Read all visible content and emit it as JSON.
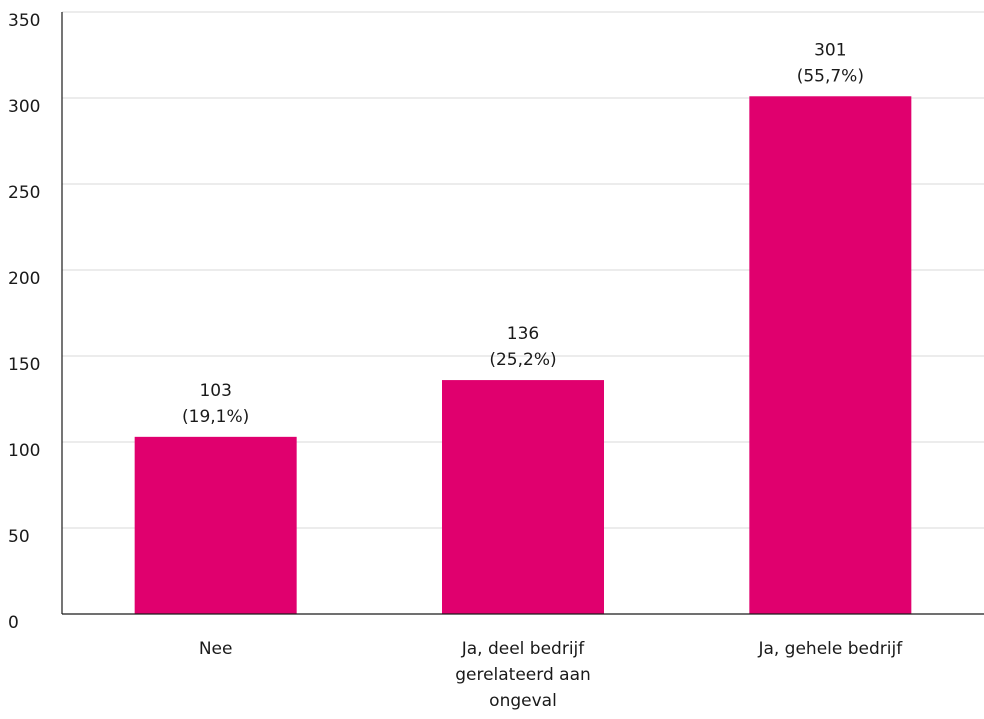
{
  "chart_data": {
    "type": "bar",
    "categories": [
      [
        "Nee"
      ],
      [
        "Ja, deel bedrijf",
        "gerelateerd aan",
        "ongeval"
      ],
      [
        "Ja, gehele bedrijf"
      ]
    ],
    "values": [
      103,
      136,
      301
    ],
    "value_labels": [
      "103",
      "136",
      "301"
    ],
    "percent_labels": [
      "(19,1%)",
      "(25,2%)",
      "(55,7%)"
    ],
    "ylim": [
      0,
      350
    ],
    "yticks": [
      0,
      50,
      100,
      150,
      200,
      250,
      300,
      350
    ],
    "grid": true,
    "colors": {
      "bar": "#e0006e",
      "grid": "#d9d9d9",
      "axis": "#1a1a1a"
    },
    "title": "",
    "xlabel": "",
    "ylabel": ""
  }
}
